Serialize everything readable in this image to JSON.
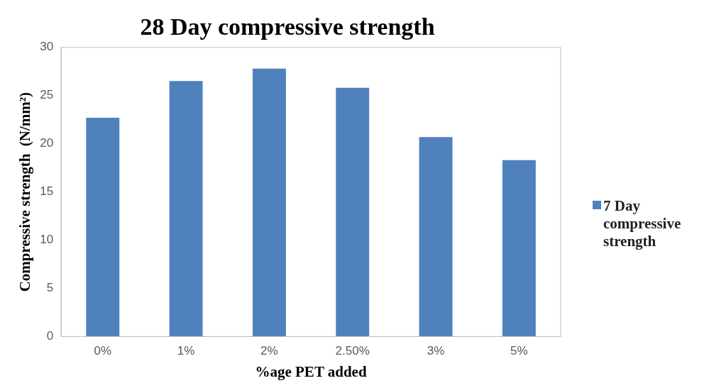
{
  "chart_data": {
    "type": "bar",
    "title": "28 Day compressive strength",
    "xlabel": "%age PET added",
    "ylabel": "Compressive strength  (N/mm²)",
    "categories": [
      "0%",
      "1%",
      "2%",
      "2.50%",
      "3%",
      "5%"
    ],
    "series": [
      {
        "name": "7 Day compressive strength",
        "color": "#4f81bd",
        "values": [
          22.7,
          26.5,
          27.8,
          25.8,
          20.7,
          18.3
        ]
      }
    ],
    "ylim": [
      0,
      30
    ],
    "yticks": [
      0,
      5,
      10,
      15,
      20,
      25,
      30
    ],
    "grid": false,
    "legend": "right"
  }
}
